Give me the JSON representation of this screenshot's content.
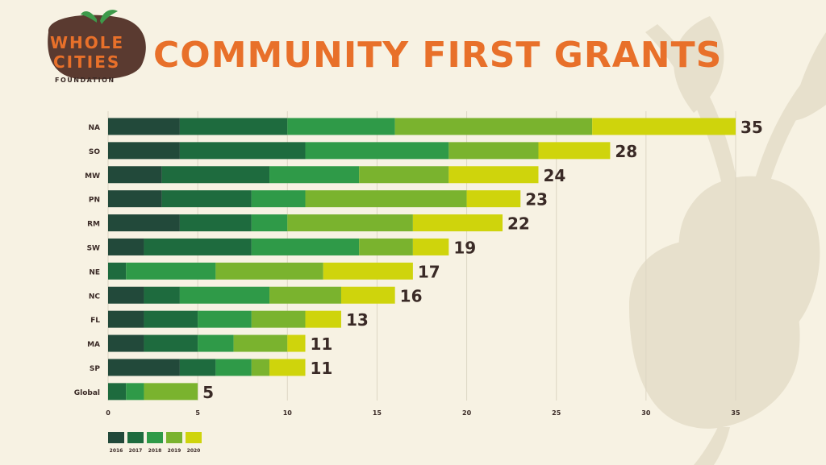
{
  "title": "COMMUNITY FIRST GRANTS",
  "logo": {
    "line1": "WHOLE",
    "line2": "CITIES",
    "line3": "FOUNDATION"
  },
  "colors": {
    "background": "#f7f2e3",
    "title": "#e8702a",
    "label": "#3a2a26",
    "grid": "#ddd6c4",
    "silhouette": "#e7e0cc"
  },
  "chart_data": {
    "type": "bar",
    "orientation": "horizontal",
    "stacked": true,
    "categories": [
      "NA",
      "SO",
      "MW",
      "PN",
      "RM",
      "SW",
      "NE",
      "NC",
      "FL",
      "MA",
      "SP",
      "Global"
    ],
    "series": [
      {
        "name": "2016",
        "color": "#22493a",
        "values": [
          4,
          4,
          3,
          3,
          4,
          2,
          0,
          2,
          2,
          2,
          4,
          0
        ]
      },
      {
        "name": "2017",
        "color": "#1e6b3e",
        "values": [
          6,
          7,
          6,
          5,
          4,
          6,
          1,
          2,
          3,
          3,
          2,
          1
        ]
      },
      {
        "name": "2018",
        "color": "#2f9a48",
        "values": [
          6,
          8,
          5,
          3,
          2,
          6,
          5,
          5,
          3,
          2,
          2,
          1
        ]
      },
      {
        "name": "2019",
        "color": "#7ab32e",
        "values": [
          11,
          5,
          5,
          9,
          7,
          3,
          6,
          4,
          3,
          3,
          1,
          3
        ]
      },
      {
        "name": "2020",
        "color": "#cfd40c",
        "values": [
          8,
          4,
          5,
          3,
          5,
          2,
          5,
          3,
          2,
          1,
          2,
          0
        ]
      }
    ],
    "totals": [
      35,
      28,
      24,
      23,
      22,
      19,
      17,
      16,
      13,
      11,
      11,
      5
    ],
    "xlim": [
      0,
      35
    ],
    "xticks": [
      0,
      5,
      10,
      15,
      20,
      25,
      30,
      35
    ],
    "grid": true,
    "legend_position": "bottom-left"
  }
}
